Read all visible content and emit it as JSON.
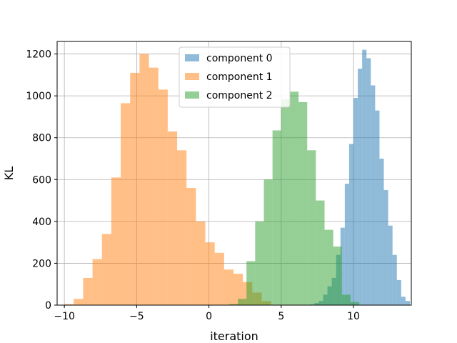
{
  "chart_data": {
    "type": "histogram",
    "title": "",
    "xlabel": "iteration",
    "ylabel": "KL",
    "xlim": [
      -10.5,
      14.0
    ],
    "ylim": [
      0,
      1260
    ],
    "xticks": [
      -10,
      -5,
      0,
      5,
      10
    ],
    "xtick_labels": [
      "−10",
      "−5",
      "0",
      "5",
      "10"
    ],
    "yticks": [
      0,
      200,
      400,
      600,
      800,
      1000,
      1200
    ],
    "ytick_labels": [
      "0",
      "200",
      "400",
      "600",
      "800",
      "1000",
      "1200"
    ],
    "grid": true,
    "legend_position": "upper center",
    "alpha": 0.5,
    "series": [
      {
        "name": "component 0",
        "color": "#1f77b4",
        "bin_width": 0.3,
        "bins": [
          [
            7.0,
            3
          ],
          [
            7.3,
            10
          ],
          [
            7.6,
            20
          ],
          [
            7.9,
            50
          ],
          [
            8.2,
            90
          ],
          [
            8.5,
            130
          ],
          [
            8.8,
            240
          ],
          [
            9.1,
            370
          ],
          [
            9.4,
            580
          ],
          [
            9.7,
            770
          ],
          [
            10.0,
            990
          ],
          [
            10.3,
            1130
          ],
          [
            10.6,
            1220
          ],
          [
            10.9,
            1180
          ],
          [
            11.2,
            1050
          ],
          [
            11.5,
            930
          ],
          [
            11.8,
            700
          ],
          [
            12.1,
            550
          ],
          [
            12.4,
            380
          ],
          [
            12.7,
            240
          ],
          [
            13.0,
            120
          ],
          [
            13.3,
            40
          ],
          [
            13.6,
            20
          ]
        ]
      },
      {
        "name": "component 1",
        "color": "#ff7f0e",
        "bin_width": 0.65,
        "bins": [
          [
            -10.0,
            5
          ],
          [
            -9.35,
            30
          ],
          [
            -8.7,
            130
          ],
          [
            -8.05,
            220
          ],
          [
            -7.4,
            340
          ],
          [
            -6.75,
            610
          ],
          [
            -6.1,
            965
          ],
          [
            -5.45,
            1110
          ],
          [
            -4.8,
            1200
          ],
          [
            -4.15,
            1135
          ],
          [
            -3.5,
            1030
          ],
          [
            -2.85,
            830
          ],
          [
            -2.2,
            740
          ],
          [
            -1.55,
            560
          ],
          [
            -0.9,
            400
          ],
          [
            -0.25,
            300
          ],
          [
            0.4,
            250
          ],
          [
            1.05,
            170
          ],
          [
            1.7,
            150
          ],
          [
            2.35,
            110
          ],
          [
            3.0,
            60
          ],
          [
            3.65,
            20
          ]
        ]
      },
      {
        "name": "component 2",
        "color": "#2ca02c",
        "bin_width": 0.6,
        "bins": [
          [
            1.4,
            5
          ],
          [
            2.0,
            30
          ],
          [
            2.6,
            210
          ],
          [
            3.2,
            400
          ],
          [
            3.8,
            600
          ],
          [
            4.4,
            835
          ],
          [
            5.0,
            985
          ],
          [
            5.6,
            1020
          ],
          [
            6.2,
            970
          ],
          [
            6.8,
            740
          ],
          [
            7.4,
            500
          ],
          [
            8.0,
            360
          ],
          [
            8.6,
            280
          ],
          [
            9.2,
            50
          ],
          [
            9.8,
            15
          ]
        ]
      }
    ]
  }
}
